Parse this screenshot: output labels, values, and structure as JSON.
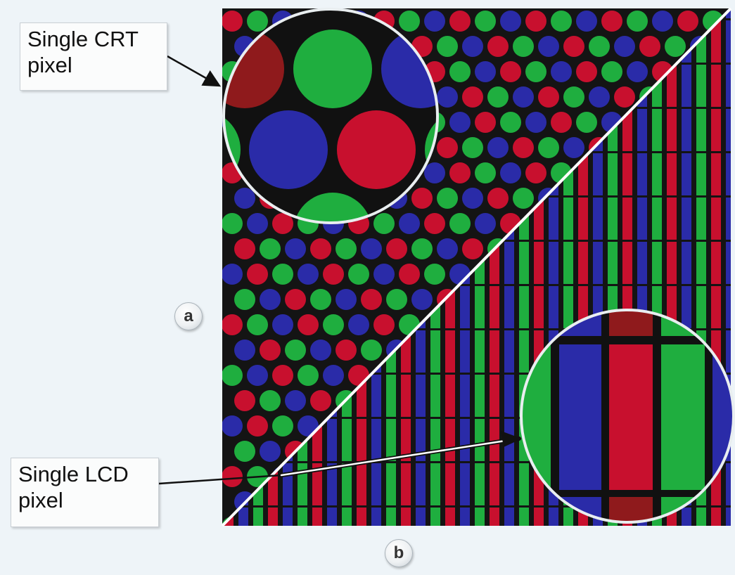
{
  "callouts": {
    "crt": "Single CRT\npixel",
    "lcd": "Single LCD\npixel"
  },
  "badges": {
    "a": "a",
    "b": "b"
  },
  "colors": {
    "background": "#eef4f8",
    "screen_black": "#141414",
    "phosphor_red": "#c8102e",
    "phosphor_green": "#1fae3f",
    "phosphor_blue": "#2a2ba8",
    "divider": "#ffffff"
  }
}
